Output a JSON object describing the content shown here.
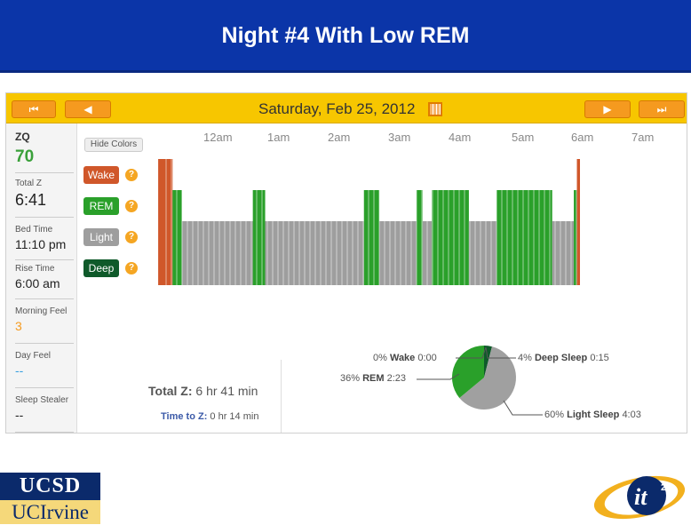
{
  "slide": {
    "title": "Night #4 With Low REM"
  },
  "nav": {
    "first": "⏮",
    "prev": "◀",
    "next": "▶",
    "last": "⏭"
  },
  "date": "Saturday, Feb 25, 2012",
  "stats": {
    "zq_label": "ZQ",
    "zq_value": "70",
    "total_z_label": "Total Z",
    "total_z_value": "6:41",
    "bed_time_label": "Bed Time",
    "bed_time_value": "11:10 pm",
    "rise_time_label": "Rise Time",
    "rise_time_value": "6:00 am",
    "morning_feel_label": "Morning Feel",
    "morning_feel_value": "3",
    "day_feel_label": "Day Feel",
    "day_feel_value": "--",
    "sleep_stealer_label": "Sleep Stealer",
    "sleep_stealer_value": "--"
  },
  "hide_colors": "Hide Colors",
  "stages": [
    {
      "label": "Wake",
      "color": "#d0572a"
    },
    {
      "label": "REM",
      "color": "#2aa02a"
    },
    {
      "label": "Light",
      "color": "#9e9e9e"
    },
    {
      "label": "Deep",
      "color": "#0f5a2a"
    }
  ],
  "help": "?",
  "times": [
    "12am",
    "1am",
    "2am",
    "3am",
    "4am",
    "5am",
    "6am",
    "7am"
  ],
  "hypnogram": {
    "start_hour": 23.1667,
    "end_hour": 6.0,
    "segments": [
      {
        "stage": "Wake",
        "from": 23.1667,
        "to": 23.4
      },
      {
        "stage": "REM",
        "from": 23.4,
        "to": 23.55
      },
      {
        "stage": "Light",
        "from": 23.55,
        "to": 24.7
      },
      {
        "stage": "REM",
        "from": 24.7,
        "to": 24.9
      },
      {
        "stage": "Light",
        "from": 24.9,
        "to": 26.5
      },
      {
        "stage": "REM",
        "from": 26.5,
        "to": 26.75
      },
      {
        "stage": "Light",
        "from": 26.75,
        "to": 27.35
      },
      {
        "stage": "REM",
        "from": 27.35,
        "to": 27.45
      },
      {
        "stage": "Light",
        "from": 27.45,
        "to": 27.6
      },
      {
        "stage": "REM",
        "from": 27.6,
        "to": 28.2
      },
      {
        "stage": "Light",
        "from": 28.2,
        "to": 28.65
      },
      {
        "stage": "REM",
        "from": 28.65,
        "to": 29.55
      },
      {
        "stage": "Light",
        "from": 29.55,
        "to": 29.9
      },
      {
        "stage": "REM",
        "from": 29.9,
        "to": 29.95
      },
      {
        "stage": "Wake",
        "from": 29.95,
        "to": 30.0
      }
    ]
  },
  "summary": {
    "total_z_label": "Total Z:",
    "total_z_value": "6 hr 41 min",
    "time_to_z_label": "Time to Z:",
    "time_to_z_value": "0 hr 14 min"
  },
  "pie": {
    "slices": [
      {
        "pct_label": "0%",
        "name": "Wake",
        "time": "0:00",
        "value": 0,
        "color": "#d0572a"
      },
      {
        "pct_label": "4%",
        "name": "Deep Sleep",
        "time": "0:15",
        "value": 4,
        "color": "#0f5a2a"
      },
      {
        "pct_label": "60%",
        "name": "Light Sleep",
        "time": "4:03",
        "value": 60,
        "color": "#a0a0a0"
      },
      {
        "pct_label": "36%",
        "name": "REM",
        "time": "2:23",
        "value": 36,
        "color": "#2aa02a"
      }
    ]
  },
  "logos": {
    "ucsd": "UCSD",
    "uci": "UCIrvine",
    "it2": "it"
  }
}
